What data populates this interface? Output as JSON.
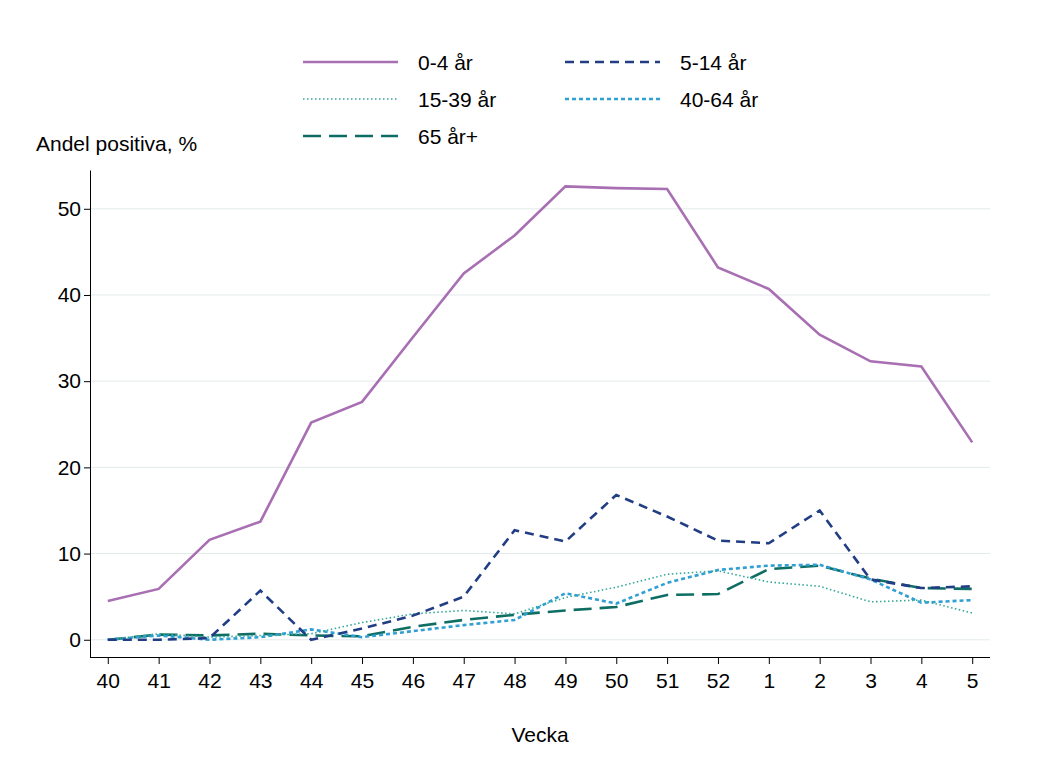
{
  "chart_data": {
    "type": "line",
    "y_label": "Andel positiva, %",
    "x_label": "Vecka",
    "categories": [
      "40",
      "41",
      "42",
      "43",
      "44",
      "45",
      "46",
      "47",
      "48",
      "49",
      "50",
      "51",
      "52",
      "1",
      "2",
      "3",
      "4",
      "5"
    ],
    "ylim": [
      -2,
      54.5
    ],
    "yticks": [
      0,
      10,
      20,
      30,
      40,
      50
    ],
    "grid": true,
    "legend": "top",
    "series": [
      {
        "name": "0-4 år",
        "color": "#a86fb3",
        "line_style": "solid",
        "values": [
          4.5,
          5.9,
          11.6,
          13.7,
          25.2,
          27.6,
          35.1,
          42.5,
          46.9,
          52.6,
          52.4,
          52.3,
          43.2,
          40.7,
          35.4,
          32.3,
          31.7,
          22.9
        ]
      },
      {
        "name": "5-14 år",
        "color": "#213d84",
        "line_style": "dashed",
        "values": [
          0,
          0,
          0.2,
          5.7,
          0,
          1.3,
          2.8,
          5.0,
          12.7,
          11.4,
          16.8,
          14.3,
          11.5,
          11.2,
          15.0,
          7.0,
          6.0,
          6.2
        ]
      },
      {
        "name": "15-39 år",
        "color": "#33a89a",
        "line_style": "dotted",
        "values": [
          0,
          0.7,
          0.3,
          0.5,
          0.7,
          2.0,
          3.0,
          3.4,
          3.0,
          4.9,
          6.1,
          7.6,
          8.0,
          6.7,
          6.2,
          4.4,
          4.6,
          3.1
        ]
      },
      {
        "name": "40-64 år",
        "color": "#2f9fd4",
        "line_style": "shortdash",
        "values": [
          0,
          0.5,
          0,
          0.3,
          1.2,
          0.3,
          1.0,
          1.7,
          2.3,
          5.4,
          4.2,
          6.6,
          8.1,
          8.6,
          8.7,
          7.0,
          4.3,
          4.6
        ]
      },
      {
        "name": "65 år+",
        "color": "#0e6e64",
        "line_style": "longdash",
        "values": [
          0,
          0.6,
          0.5,
          0.7,
          0.5,
          0.4,
          1.5,
          2.3,
          2.9,
          3.4,
          3.8,
          5.2,
          5.3,
          8.2,
          8.6,
          7.1,
          6.0,
          5.9
        ]
      }
    ]
  }
}
